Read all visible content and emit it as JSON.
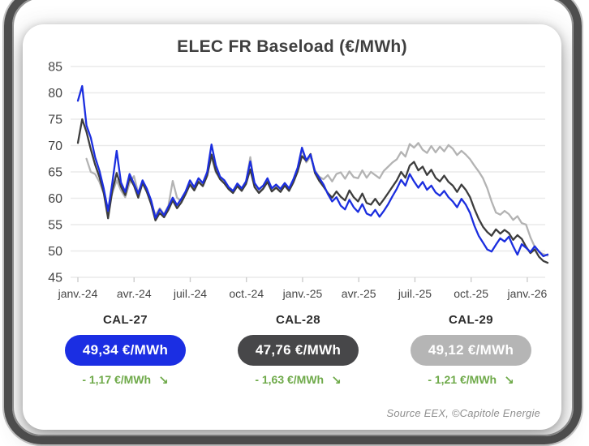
{
  "chart_data": {
    "type": "line",
    "title": "ELEC FR Baseload (€/MWh)",
    "ylim": [
      45,
      85
    ],
    "y_ticks": [
      85,
      80,
      75,
      70,
      65,
      60,
      55,
      50,
      45
    ],
    "x_tick_labels": [
      "janv.-24",
      "avr.-24",
      "juil.-24",
      "oct.-24",
      "janv.-25",
      "avr.-25",
      "juil.-25",
      "oct.-25",
      "janv.-26"
    ],
    "grid": true,
    "legend_position": "none",
    "series": [
      {
        "name": "CAL-27",
        "color": "#1b2edf",
        "values": [
          78.5,
          81.3,
          73.8,
          71.5,
          67.8,
          65.2,
          61.8,
          57.6,
          63.0,
          69.0,
          63.0,
          61.2,
          64.6,
          62.8,
          60.9,
          63.4,
          61.8,
          59.6,
          56.3,
          57.9,
          56.8,
          58.4,
          60.1,
          58.7,
          59.9,
          61.3,
          63.4,
          62.1,
          63.8,
          62.9,
          65.0,
          70.2,
          66.3,
          64.1,
          63.4,
          62.1,
          61.4,
          62.8,
          61.9,
          63.2,
          67.0,
          62.9,
          61.7,
          62.4,
          63.8,
          61.9,
          62.6,
          61.8,
          62.9,
          61.9,
          63.6,
          65.8,
          69.6,
          67.2,
          68.3,
          65.1,
          63.9,
          62.6,
          60.8,
          59.4,
          60.2,
          58.6,
          57.9,
          59.7,
          58.3,
          57.4,
          58.9,
          57.1,
          56.7,
          57.8,
          56.5,
          57.6,
          58.9,
          60.4,
          61.8,
          63.5,
          62.4,
          64.6,
          63.2,
          62.0,
          63.1,
          61.6,
          62.4,
          61.1,
          60.5,
          61.4,
          60.2,
          59.4,
          58.3,
          59.9,
          58.8,
          57.2,
          54.8,
          52.9,
          51.6,
          50.3,
          49.9,
          51.2,
          52.4,
          51.8,
          52.7,
          50.9,
          49.3,
          51.3,
          50.6,
          49.8,
          50.9,
          49.9,
          49.0,
          49.34
        ]
      },
      {
        "name": "CAL-28",
        "color": "#3d3d3d",
        "values": [
          70.5,
          75.0,
          72.6,
          69.3,
          66.4,
          64.0,
          61.0,
          56.2,
          61.5,
          64.8,
          62.2,
          60.6,
          63.9,
          62.4,
          60.1,
          62.9,
          61.2,
          58.9,
          55.8,
          57.2,
          56.4,
          57.8,
          59.6,
          58.1,
          59.2,
          60.8,
          62.6,
          61.5,
          63.1,
          62.3,
          64.3,
          68.3,
          65.2,
          63.6,
          62.8,
          61.7,
          61.0,
          62.3,
          61.4,
          62.7,
          65.5,
          62.1,
          61.0,
          61.8,
          63.1,
          61.3,
          62.0,
          61.2,
          62.4,
          61.4,
          63.0,
          65.1,
          68.0,
          67.1,
          68.4,
          64.8,
          63.3,
          62.2,
          61.0,
          60.1,
          61.3,
          60.3,
          59.6,
          61.5,
          60.2,
          59.4,
          60.9,
          59.1,
          58.8,
          59.9,
          58.7,
          59.8,
          61.0,
          62.2,
          63.4,
          65.0,
          63.9,
          66.2,
          66.9,
          65.3,
          66.0,
          64.4,
          65.4,
          63.9,
          63.2,
          64.3,
          63.1,
          62.4,
          61.2,
          62.6,
          61.6,
          60.2,
          58.0,
          56.1,
          54.6,
          53.6,
          52.9,
          54.1,
          53.3,
          54.0,
          53.4,
          52.1,
          53.0,
          52.3,
          50.8,
          49.6,
          50.3,
          48.9,
          48.1,
          47.76
        ]
      },
      {
        "name": "CAL-29",
        "color": "#b3b3b3",
        "values": [
          null,
          null,
          67.5,
          65.0,
          64.6,
          63.1,
          60.9,
          58.0,
          61.0,
          63.4,
          61.5,
          60.2,
          62.9,
          64.2,
          61.0,
          63.3,
          61.6,
          59.3,
          56.8,
          58.1,
          57.0,
          58.6,
          63.3,
          60.1,
          59.4,
          61.2,
          62.8,
          61.7,
          63.5,
          62.6,
          64.6,
          67.8,
          64.9,
          63.8,
          63.1,
          62.0,
          61.3,
          62.5,
          61.7,
          63.0,
          67.8,
          62.4,
          61.3,
          61.9,
          63.3,
          61.6,
          62.3,
          61.5,
          62.6,
          61.7,
          63.4,
          65.4,
          69.3,
          66.8,
          67.9,
          65.3,
          64.1,
          63.6,
          64.4,
          63.2,
          64.6,
          64.9,
          63.7,
          65.1,
          64.0,
          63.8,
          65.3,
          63.9,
          65.0,
          64.4,
          63.8,
          65.2,
          66.0,
          66.8,
          67.4,
          68.8,
          67.9,
          70.3,
          69.6,
          70.5,
          69.2,
          68.6,
          69.9,
          68.7,
          69.8,
          68.9,
          70.1,
          69.4,
          68.2,
          69.0,
          68.3,
          67.4,
          66.2,
          65.1,
          63.8,
          61.9,
          59.4,
          57.3,
          56.9,
          57.6,
          57.0,
          55.9,
          56.6,
          55.3,
          55.0,
          52.6,
          50.8,
          49.8,
          49.4,
          49.12
        ]
      }
    ]
  },
  "summary_cards": [
    {
      "label": "CAL-27",
      "value": "49,34 €/MWh",
      "delta": "- 1,17 €/MWh",
      "trend_arrow": "↘",
      "pill_color": "#1b2ee3"
    },
    {
      "label": "CAL-28",
      "value": "47,76 €/MWh",
      "delta": "- 1,63 €/MWh",
      "trend_arrow": "↘",
      "pill_color": "#474749"
    },
    {
      "label": "CAL-29",
      "value": "49,12 €/MWh",
      "delta": "- 1,21 €/MWh",
      "trend_arrow": "↘",
      "pill_color": "#b5b5b5"
    }
  ],
  "footer": {
    "source": "Source EEX, ©Capitole Energie"
  },
  "colors": {
    "accent_blue": "#1b2ee3",
    "dark_gray": "#474749",
    "light_gray": "#b5b5b5",
    "delta_green": "#6faa4a",
    "grid_line": "#eaeaea",
    "axis_text": "#454545",
    "title_text": "#3f3f3f"
  }
}
